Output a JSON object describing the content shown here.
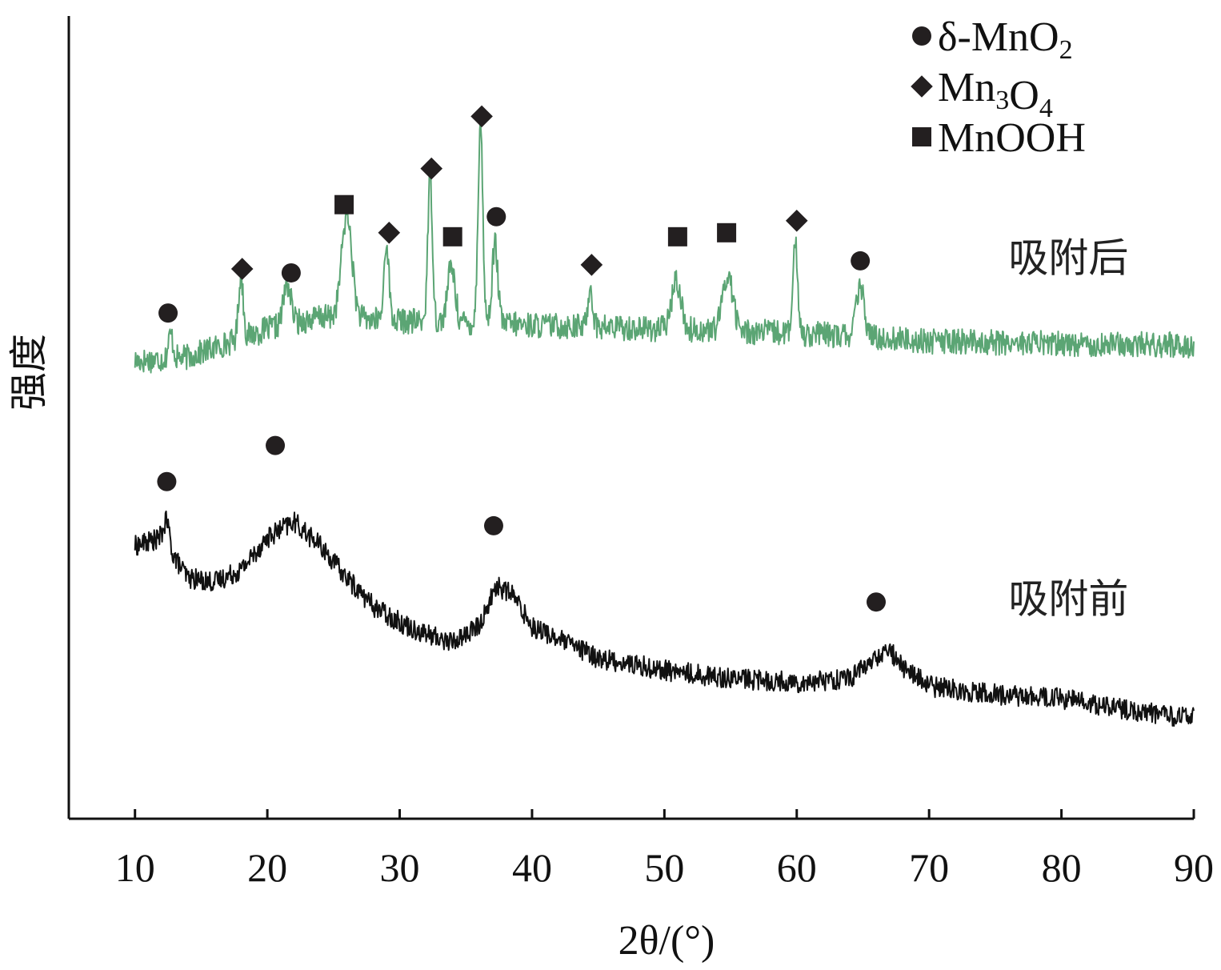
{
  "chart_data": {
    "type": "line",
    "xlabel": "2θ/(°)",
    "ylabel": "强度",
    "xlim": [
      5,
      90
    ],
    "ylim": [
      0,
      100
    ],
    "x_ticks": [
      "10",
      "20",
      "30",
      "40",
      "50",
      "60",
      "70",
      "80",
      "90"
    ],
    "grid": false,
    "legend": {
      "placement": "top-right",
      "entries": [
        {
          "label": "δ-MnO2",
          "marker": "circle"
        },
        {
          "label": "Mn3O4",
          "marker": "diamond"
        },
        {
          "label": "MnOOH",
          "marker": "square"
        }
      ]
    },
    "series": [
      {
        "name": "吸附后",
        "color": "#5ba574",
        "baseline": [
          [
            10,
            57
          ],
          [
            14,
            57.5
          ],
          [
            20,
            61
          ],
          [
            24,
            62.5
          ],
          [
            30,
            62
          ],
          [
            40,
            61.5
          ],
          [
            50,
            61
          ],
          [
            60,
            60.5
          ],
          [
            70,
            59.5
          ],
          [
            80,
            59.2
          ],
          [
            90,
            59
          ]
        ],
        "peaks": [
          {
            "x": 12.7,
            "h": 3,
            "w": 0.25
          },
          {
            "x": 18.0,
            "h": 8,
            "w": 0.25
          },
          {
            "x": 21.5,
            "h": 5,
            "w": 0.4
          },
          {
            "x": 26.0,
            "h": 13,
            "w": 0.55
          },
          {
            "x": 29.0,
            "h": 10,
            "w": 0.25
          },
          {
            "x": 32.3,
            "h": 18,
            "w": 0.25
          },
          {
            "x": 33.9,
            "h": 7,
            "w": 0.4
          },
          {
            "x": 36.1,
            "h": 25,
            "w": 0.25
          },
          {
            "x": 37.2,
            "h": 10,
            "w": 0.3
          },
          {
            "x": 44.4,
            "h": 5,
            "w": 0.25
          },
          {
            "x": 50.9,
            "h": 6,
            "w": 0.5
          },
          {
            "x": 54.8,
            "h": 7,
            "w": 0.55
          },
          {
            "x": 59.9,
            "h": 11,
            "w": 0.25
          },
          {
            "x": 64.8,
            "h": 6,
            "w": 0.45
          }
        ],
        "noise": 1.6
      },
      {
        "name": "吸附前",
        "color": "#111111",
        "baseline": [
          [
            10,
            34
          ],
          [
            12,
            35
          ],
          [
            14,
            30
          ],
          [
            16,
            29.5
          ],
          [
            18,
            31
          ],
          [
            20,
            35
          ],
          [
            22,
            37
          ],
          [
            24,
            34
          ],
          [
            26,
            30
          ],
          [
            28,
            26.5
          ],
          [
            30,
            24.5
          ],
          [
            32,
            23
          ],
          [
            34,
            22
          ],
          [
            36,
            24
          ],
          [
            37.3,
            29
          ],
          [
            38.5,
            28
          ],
          [
            40,
            24
          ],
          [
            45,
            20
          ],
          [
            50,
            18.5
          ],
          [
            55,
            17.5
          ],
          [
            60,
            17
          ],
          [
            64,
            17.5
          ],
          [
            66,
            20
          ],
          [
            67,
            21
          ],
          [
            68,
            19
          ],
          [
            70,
            16.5
          ],
          [
            75,
            15.5
          ],
          [
            80,
            15
          ],
          [
            85,
            13.5
          ],
          [
            90,
            12.5
          ]
        ],
        "peaks": [
          {
            "x": 12.4,
            "h": 3,
            "w": 0.3
          }
        ],
        "noise": 1.3
      }
    ],
    "markers": [
      {
        "x": 12.5,
        "y": 63,
        "type": "circle"
      },
      {
        "x": 18.1,
        "y": 68.5,
        "type": "diamond"
      },
      {
        "x": 21.8,
        "y": 68,
        "type": "circle"
      },
      {
        "x": 25.8,
        "y": 76.5,
        "type": "square"
      },
      {
        "x": 29.2,
        "y": 73,
        "type": "diamond"
      },
      {
        "x": 32.4,
        "y": 81,
        "type": "diamond"
      },
      {
        "x": 34.0,
        "y": 72.5,
        "type": "square"
      },
      {
        "x": 36.2,
        "y": 87.5,
        "type": "diamond"
      },
      {
        "x": 37.3,
        "y": 75,
        "type": "circle"
      },
      {
        "x": 44.5,
        "y": 69,
        "type": "diamond"
      },
      {
        "x": 51.0,
        "y": 72.5,
        "type": "square"
      },
      {
        "x": 54.7,
        "y": 73,
        "type": "square"
      },
      {
        "x": 60.0,
        "y": 74.5,
        "type": "diamond"
      },
      {
        "x": 64.8,
        "y": 69.5,
        "type": "circle"
      },
      {
        "x": 12.4,
        "y": 42,
        "type": "circle"
      },
      {
        "x": 20.6,
        "y": 46.5,
        "type": "circle"
      },
      {
        "x": 37.1,
        "y": 36.5,
        "type": "circle"
      },
      {
        "x": 66.0,
        "y": 27,
        "type": "circle"
      }
    ],
    "series_labels": [
      {
        "text": "吸附后",
        "x": 76.0,
        "y": 69.5
      },
      {
        "text": "吸附前",
        "x": 76.0,
        "y": 27
      }
    ]
  }
}
